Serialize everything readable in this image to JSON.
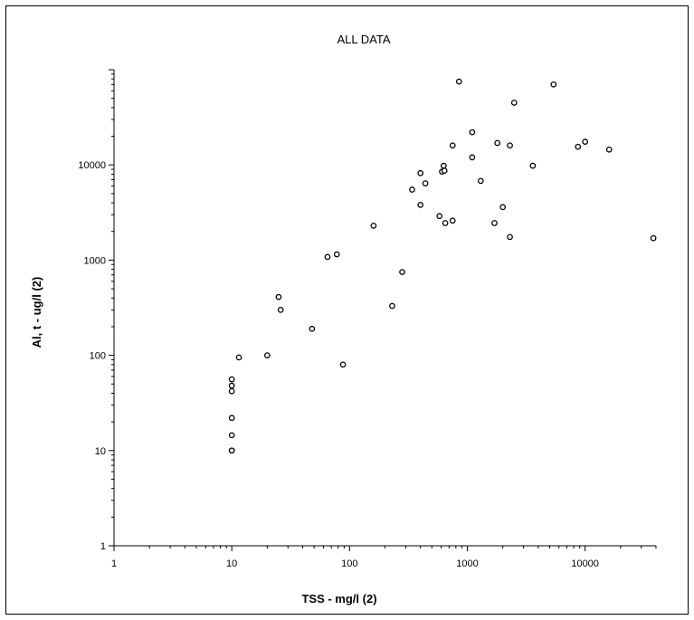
{
  "chart_data": {
    "type": "scatter",
    "title": "ALL DATA",
    "xlabel": "TSS - mg/l (2)",
    "ylabel": "Al, t - ug/l (2)",
    "x_scale": "log",
    "y_scale": "log",
    "xlim": [
      1,
      40000
    ],
    "ylim": [
      1,
      100000
    ],
    "x_ticks": [
      "1",
      "10",
      "100",
      "1000",
      "10000"
    ],
    "y_ticks": [
      "1",
      "10",
      "100",
      "1000",
      "10000"
    ],
    "grid": false,
    "legend": "none",
    "marker": "open-circle",
    "marker_color": "#000000",
    "points": [
      {
        "x": 10,
        "y": 10
      },
      {
        "x": 10,
        "y": 10
      },
      {
        "x": 10,
        "y": 14.5
      },
      {
        "x": 10,
        "y": 22
      },
      {
        "x": 10,
        "y": 42
      },
      {
        "x": 10,
        "y": 48
      },
      {
        "x": 10,
        "y": 56
      },
      {
        "x": 11.5,
        "y": 95
      },
      {
        "x": 20,
        "y": 100
      },
      {
        "x": 25,
        "y": 410
      },
      {
        "x": 26,
        "y": 300
      },
      {
        "x": 48,
        "y": 190
      },
      {
        "x": 65,
        "y": 1080
      },
      {
        "x": 78,
        "y": 1150
      },
      {
        "x": 88,
        "y": 80
      },
      {
        "x": 160,
        "y": 2300
      },
      {
        "x": 230,
        "y": 330
      },
      {
        "x": 280,
        "y": 750
      },
      {
        "x": 340,
        "y": 5500
      },
      {
        "x": 400,
        "y": 8200
      },
      {
        "x": 400,
        "y": 3800
      },
      {
        "x": 440,
        "y": 6400
      },
      {
        "x": 580,
        "y": 2900
      },
      {
        "x": 610,
        "y": 8500
      },
      {
        "x": 630,
        "y": 9800
      },
      {
        "x": 640,
        "y": 8700
      },
      {
        "x": 650,
        "y": 2450
      },
      {
        "x": 750,
        "y": 16000
      },
      {
        "x": 750,
        "y": 2600
      },
      {
        "x": 850,
        "y": 75000
      },
      {
        "x": 1100,
        "y": 22000
      },
      {
        "x": 1100,
        "y": 12000
      },
      {
        "x": 1300,
        "y": 6800
      },
      {
        "x": 1700,
        "y": 2450
      },
      {
        "x": 1800,
        "y": 17000
      },
      {
        "x": 2000,
        "y": 3600
      },
      {
        "x": 2300,
        "y": 16000
      },
      {
        "x": 2300,
        "y": 1750
      },
      {
        "x": 2500,
        "y": 45000
      },
      {
        "x": 3600,
        "y": 9800
      },
      {
        "x": 5400,
        "y": 70000
      },
      {
        "x": 8700,
        "y": 15500
      },
      {
        "x": 10000,
        "y": 17500
      },
      {
        "x": 16000,
        "y": 14500
      },
      {
        "x": 38000,
        "y": 1700
      }
    ]
  }
}
